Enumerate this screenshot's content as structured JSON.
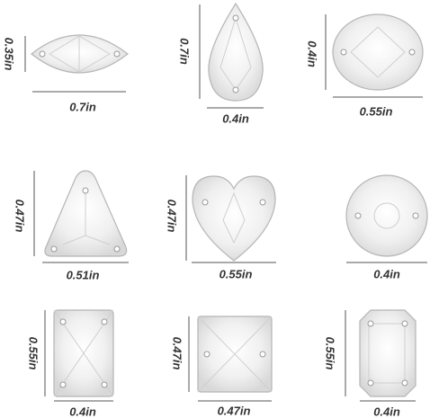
{
  "items": [
    {
      "shape": "marquise",
      "height": "0.35in",
      "width": "0.7in"
    },
    {
      "shape": "teardrop",
      "height": "0.7in",
      "width": "0.4in"
    },
    {
      "shape": "oval",
      "height": "0.4in",
      "width": "0.55in"
    },
    {
      "shape": "triangle",
      "height": "0.47in",
      "width": "0.51in"
    },
    {
      "shape": "heart",
      "height": "0.47in",
      "width": "0.55in"
    },
    {
      "shape": "round",
      "width": "0.4in"
    },
    {
      "shape": "rectangle",
      "height": "0.55in",
      "width": "0.4in"
    },
    {
      "shape": "square",
      "height": "0.47in",
      "width": "0.47in"
    },
    {
      "shape": "octagon",
      "height": "0.55in",
      "width": "0.4in"
    }
  ]
}
